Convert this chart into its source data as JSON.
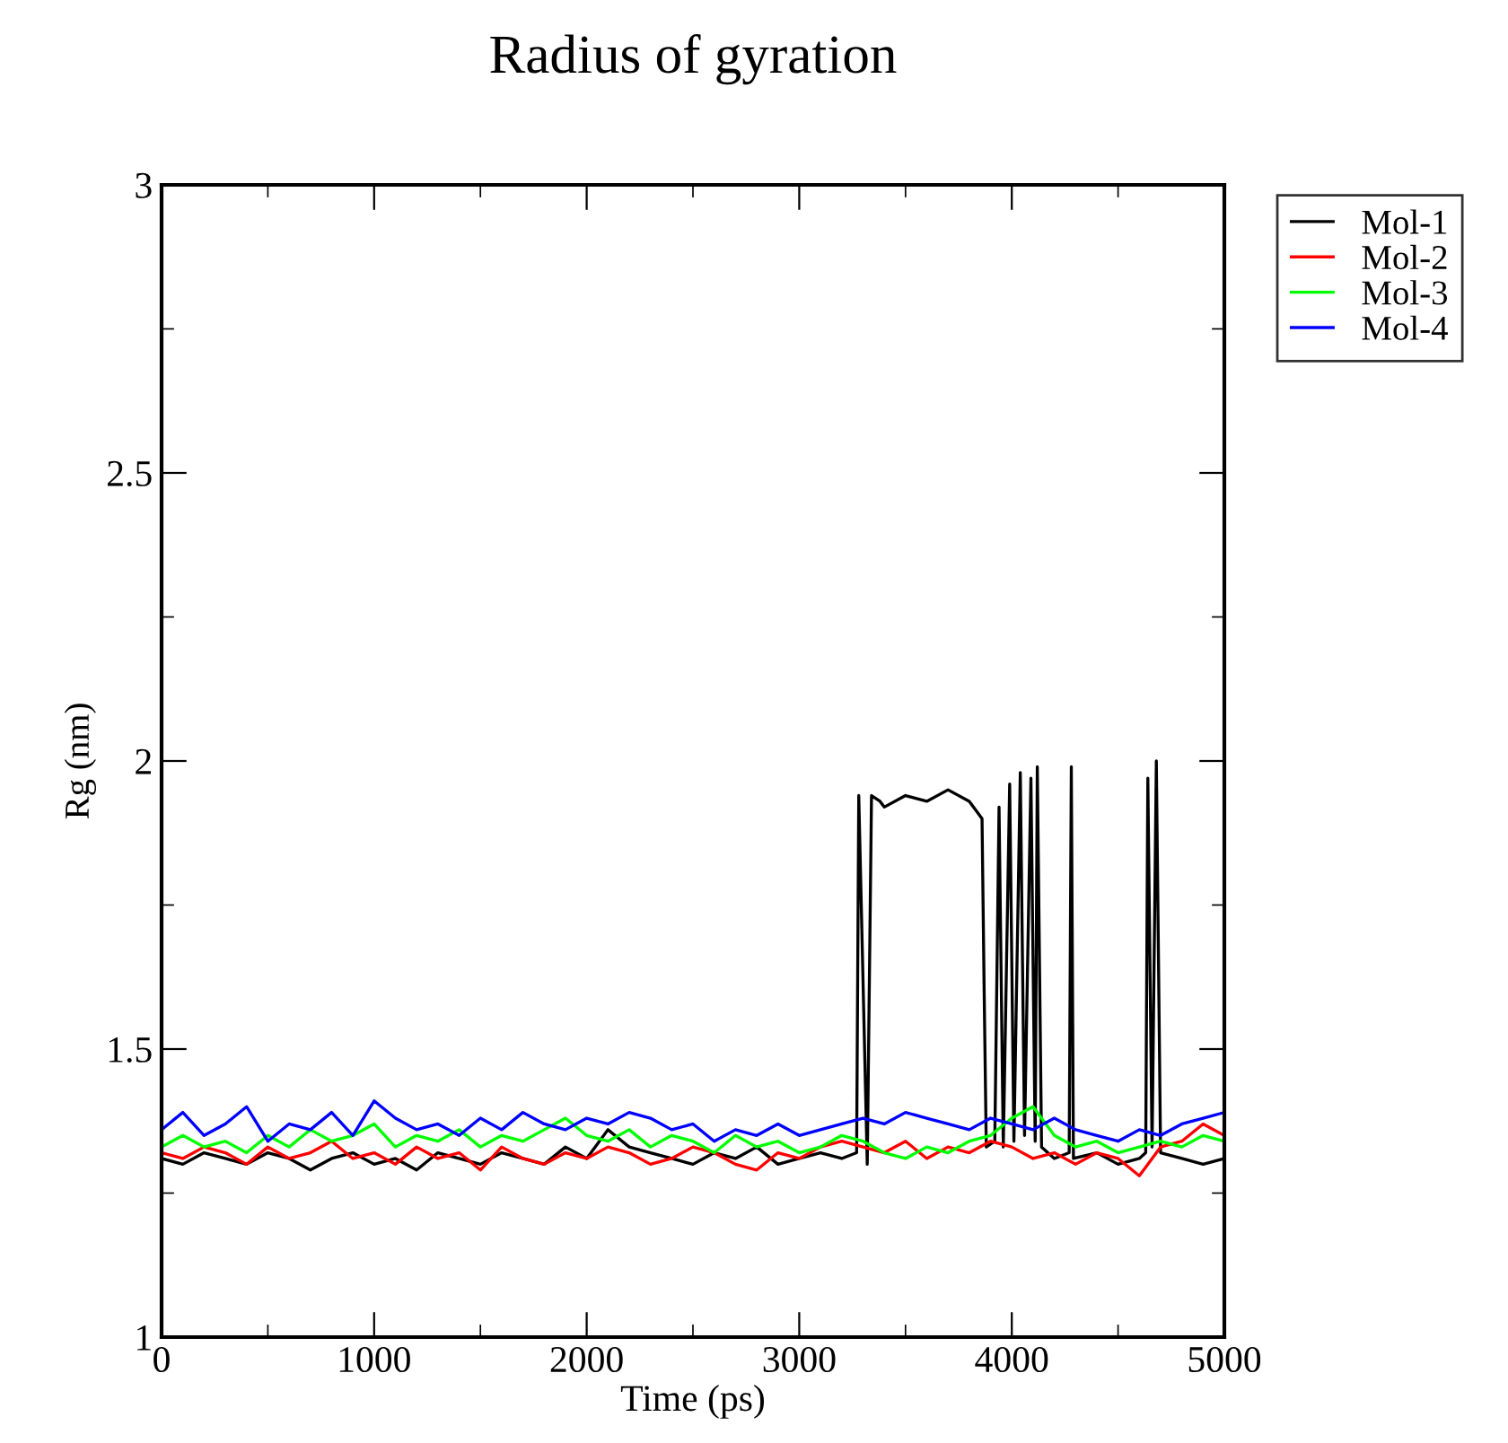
{
  "chart_data": {
    "type": "line",
    "title": "Radius of gyration",
    "xlabel": "Time (ps)",
    "ylabel": "Rg (nm)",
    "xlim": [
      0,
      5000
    ],
    "ylim": [
      1,
      3
    ],
    "xticks": [
      0,
      1000,
      2000,
      3000,
      4000,
      5000
    ],
    "yticks": [
      1,
      1.5,
      2,
      2.5,
      3
    ],
    "grid": false,
    "legend": "top right",
    "marker": "none",
    "line_style": "solid",
    "series": [
      {
        "name": "Mol-1",
        "color": "#000000",
        "x": [
          0,
          100,
          200,
          300,
          400,
          500,
          600,
          700,
          800,
          900,
          1000,
          1100,
          1200,
          1300,
          1400,
          1500,
          1600,
          1700,
          1800,
          1900,
          2000,
          2100,
          2200,
          2300,
          2400,
          2500,
          2600,
          2700,
          2800,
          2900,
          3000,
          3100,
          3200,
          3270,
          3280,
          3320,
          3340,
          3380,
          3400,
          3500,
          3600,
          3700,
          3800,
          3860,
          3870,
          3880,
          3920,
          3940,
          3960,
          3990,
          4010,
          4040,
          4060,
          4090,
          4110,
          4120,
          4140,
          4200,
          4270,
          4280,
          4290,
          4400,
          4500,
          4600,
          4630,
          4640,
          4660,
          4680,
          4700,
          4800,
          4900,
          5000
        ],
        "values": [
          1.31,
          1.3,
          1.32,
          1.31,
          1.3,
          1.32,
          1.31,
          1.29,
          1.31,
          1.32,
          1.3,
          1.31,
          1.29,
          1.32,
          1.31,
          1.3,
          1.32,
          1.31,
          1.3,
          1.33,
          1.31,
          1.36,
          1.33,
          1.32,
          1.31,
          1.3,
          1.32,
          1.31,
          1.33,
          1.3,
          1.31,
          1.32,
          1.31,
          1.32,
          1.94,
          1.3,
          1.94,
          1.93,
          1.92,
          1.94,
          1.93,
          1.95,
          1.93,
          1.9,
          1.6,
          1.33,
          1.34,
          1.92,
          1.33,
          1.96,
          1.34,
          1.98,
          1.35,
          1.97,
          1.34,
          1.99,
          1.33,
          1.31,
          1.32,
          1.99,
          1.31,
          1.32,
          1.3,
          1.31,
          1.32,
          1.97,
          1.33,
          2.0,
          1.32,
          1.31,
          1.3,
          1.31
        ]
      },
      {
        "name": "Mol-2",
        "color": "#ff0000",
        "x": [
          0,
          100,
          200,
          300,
          400,
          500,
          600,
          700,
          800,
          900,
          1000,
          1100,
          1200,
          1300,
          1400,
          1500,
          1600,
          1700,
          1800,
          1900,
          2000,
          2100,
          2200,
          2300,
          2400,
          2500,
          2600,
          2700,
          2800,
          2900,
          3000,
          3100,
          3200,
          3300,
          3400,
          3500,
          3600,
          3700,
          3800,
          3900,
          4000,
          4100,
          4200,
          4300,
          4400,
          4500,
          4600,
          4700,
          4800,
          4900,
          5000
        ],
        "values": [
          1.32,
          1.31,
          1.33,
          1.32,
          1.3,
          1.33,
          1.31,
          1.32,
          1.34,
          1.31,
          1.32,
          1.3,
          1.33,
          1.31,
          1.32,
          1.29,
          1.33,
          1.31,
          1.3,
          1.32,
          1.31,
          1.33,
          1.32,
          1.3,
          1.31,
          1.33,
          1.32,
          1.3,
          1.29,
          1.32,
          1.31,
          1.33,
          1.34,
          1.33,
          1.32,
          1.34,
          1.31,
          1.33,
          1.32,
          1.34,
          1.33,
          1.31,
          1.32,
          1.3,
          1.32,
          1.31,
          1.28,
          1.33,
          1.34,
          1.37,
          1.35
        ]
      },
      {
        "name": "Mol-3",
        "color": "#00ff00",
        "x": [
          0,
          100,
          200,
          300,
          400,
          500,
          600,
          700,
          800,
          900,
          1000,
          1100,
          1200,
          1300,
          1400,
          1500,
          1600,
          1700,
          1800,
          1900,
          2000,
          2100,
          2200,
          2300,
          2400,
          2500,
          2600,
          2700,
          2800,
          2900,
          3000,
          3100,
          3200,
          3300,
          3400,
          3500,
          3600,
          3700,
          3800,
          3900,
          4000,
          4100,
          4200,
          4300,
          4400,
          4500,
          4600,
          4700,
          4800,
          4900,
          5000
        ],
        "values": [
          1.33,
          1.35,
          1.33,
          1.34,
          1.32,
          1.35,
          1.33,
          1.36,
          1.34,
          1.35,
          1.37,
          1.33,
          1.35,
          1.34,
          1.36,
          1.33,
          1.35,
          1.34,
          1.36,
          1.38,
          1.35,
          1.34,
          1.36,
          1.33,
          1.35,
          1.34,
          1.32,
          1.35,
          1.33,
          1.34,
          1.32,
          1.33,
          1.35,
          1.34,
          1.32,
          1.31,
          1.33,
          1.32,
          1.34,
          1.35,
          1.38,
          1.4,
          1.35,
          1.33,
          1.34,
          1.32,
          1.33,
          1.34,
          1.33,
          1.35,
          1.34
        ]
      },
      {
        "name": "Mol-4",
        "color": "#0000ff",
        "x": [
          0,
          100,
          200,
          300,
          400,
          500,
          600,
          700,
          800,
          900,
          1000,
          1100,
          1200,
          1300,
          1400,
          1500,
          1600,
          1700,
          1800,
          1900,
          2000,
          2100,
          2200,
          2300,
          2400,
          2500,
          2600,
          2700,
          2800,
          2900,
          3000,
          3100,
          3200,
          3300,
          3400,
          3500,
          3600,
          3700,
          3800,
          3900,
          4000,
          4100,
          4200,
          4300,
          4400,
          4500,
          4600,
          4700,
          4800,
          4900,
          5000
        ],
        "values": [
          1.36,
          1.39,
          1.35,
          1.37,
          1.4,
          1.34,
          1.37,
          1.36,
          1.39,
          1.35,
          1.41,
          1.38,
          1.36,
          1.37,
          1.35,
          1.38,
          1.36,
          1.39,
          1.37,
          1.36,
          1.38,
          1.37,
          1.39,
          1.38,
          1.36,
          1.37,
          1.34,
          1.36,
          1.35,
          1.37,
          1.35,
          1.36,
          1.37,
          1.38,
          1.37,
          1.39,
          1.38,
          1.37,
          1.36,
          1.38,
          1.37,
          1.36,
          1.38,
          1.36,
          1.35,
          1.34,
          1.36,
          1.35,
          1.37,
          1.38,
          1.39
        ]
      }
    ]
  }
}
